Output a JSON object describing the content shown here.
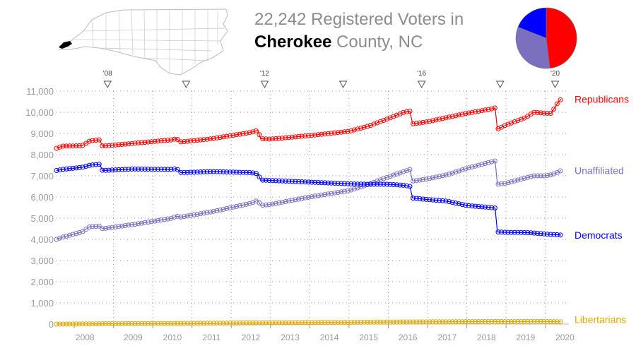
{
  "header": {
    "title_line1": "22,242 Registered Voters in",
    "county_name": "Cherokee",
    "title_line2_rest": " County, NC",
    "map_icon": "north-carolina-county-map-icon",
    "highlight_color": "#000000"
  },
  "pie": {
    "slices": [
      {
        "name": "Republicans",
        "value": 10600,
        "color": "#ff0000"
      },
      {
        "name": "Unaffiliated",
        "value": 7250,
        "color": "#7b70c0"
      },
      {
        "name": "Democrats",
        "value": 4200,
        "color": "#0000ff"
      }
    ]
  },
  "chart_data": {
    "type": "line",
    "ylim": [
      0,
      11000
    ],
    "xlim": [
      2007.55,
      2020.6
    ],
    "grid": true,
    "y_ticks": [
      "0",
      "1,000",
      "2,000",
      "3,000",
      "4,000",
      "5,000",
      "6,000",
      "7,000",
      "8,000",
      "9,000",
      "10,000",
      "11,000"
    ],
    "x_ticks": [
      "2008",
      "2009",
      "2010",
      "2011",
      "2012",
      "2013",
      "2014",
      "2015",
      "2016",
      "2017",
      "2018",
      "2019",
      "2020"
    ],
    "election_markers": [
      {
        "x": 2008.85,
        "label": "'08"
      },
      {
        "x": 2010.85,
        "label": ""
      },
      {
        "x": 2012.85,
        "label": "'12"
      },
      {
        "x": 2014.85,
        "label": ""
      },
      {
        "x": 2016.85,
        "label": "'16"
      },
      {
        "x": 2018.85,
        "label": ""
      },
      {
        "x": 2020.25,
        "label": "'20"
      }
    ],
    "series": [
      {
        "name": "Republicans",
        "color": "#ff0000",
        "points": [
          [
            2007.55,
            8300
          ],
          [
            2007.7,
            8400
          ],
          [
            2008.2,
            8420
          ],
          [
            2008.4,
            8650
          ],
          [
            2008.65,
            8700
          ],
          [
            2008.72,
            8400
          ],
          [
            2009.5,
            8530
          ],
          [
            2010.5,
            8700
          ],
          [
            2010.6,
            8760
          ],
          [
            2010.72,
            8600
          ],
          [
            2011.5,
            8750
          ],
          [
            2012.5,
            9050
          ],
          [
            2012.68,
            9150
          ],
          [
            2012.75,
            8750
          ],
          [
            2013.0,
            8730
          ],
          [
            2014.0,
            8900
          ],
          [
            2015.0,
            9100
          ],
          [
            2015.5,
            9350
          ],
          [
            2016.0,
            9700
          ],
          [
            2016.4,
            10000
          ],
          [
            2016.55,
            10050
          ],
          [
            2016.62,
            9450
          ],
          [
            2017.0,
            9550
          ],
          [
            2017.5,
            9750
          ],
          [
            2018.0,
            9950
          ],
          [
            2018.6,
            10150
          ],
          [
            2018.72,
            10200
          ],
          [
            2018.78,
            9200
          ],
          [
            2019.0,
            9400
          ],
          [
            2019.5,
            9750
          ],
          [
            2019.7,
            10000
          ],
          [
            2020.0,
            9950
          ],
          [
            2020.15,
            9950
          ],
          [
            2020.3,
            10400
          ],
          [
            2020.4,
            10620
          ]
        ]
      },
      {
        "name": "Unaffiliated",
        "color": "#7b70c0",
        "points": [
          [
            2007.55,
            4000
          ],
          [
            2007.7,
            4100
          ],
          [
            2008.2,
            4350
          ],
          [
            2008.4,
            4600
          ],
          [
            2008.65,
            4620
          ],
          [
            2008.72,
            4500
          ],
          [
            2009.5,
            4700
          ],
          [
            2010.5,
            5000
          ],
          [
            2010.6,
            5100
          ],
          [
            2010.72,
            5050
          ],
          [
            2011.5,
            5300
          ],
          [
            2012.5,
            5700
          ],
          [
            2012.68,
            5850
          ],
          [
            2012.75,
            5600
          ],
          [
            2013.0,
            5650
          ],
          [
            2014.0,
            6000
          ],
          [
            2015.0,
            6300
          ],
          [
            2015.5,
            6600
          ],
          [
            2016.0,
            6950
          ],
          [
            2016.4,
            7200
          ],
          [
            2016.55,
            7300
          ],
          [
            2016.62,
            6750
          ],
          [
            2017.0,
            6850
          ],
          [
            2017.5,
            7050
          ],
          [
            2018.0,
            7350
          ],
          [
            2018.6,
            7650
          ],
          [
            2018.72,
            7700
          ],
          [
            2018.78,
            6600
          ],
          [
            2019.0,
            6650
          ],
          [
            2019.5,
            6900
          ],
          [
            2019.7,
            7000
          ],
          [
            2020.0,
            7000
          ],
          [
            2020.15,
            7050
          ],
          [
            2020.3,
            7150
          ],
          [
            2020.4,
            7250
          ]
        ]
      },
      {
        "name": "Democrats",
        "color": "#0000ff",
        "points": [
          [
            2007.55,
            7250
          ],
          [
            2007.7,
            7300
          ],
          [
            2008.2,
            7400
          ],
          [
            2008.4,
            7500
          ],
          [
            2008.65,
            7550
          ],
          [
            2008.72,
            7250
          ],
          [
            2009.5,
            7320
          ],
          [
            2010.5,
            7300
          ],
          [
            2010.6,
            7350
          ],
          [
            2010.72,
            7150
          ],
          [
            2011.5,
            7200
          ],
          [
            2012.5,
            7150
          ],
          [
            2012.68,
            7100
          ],
          [
            2012.75,
            6800
          ],
          [
            2013.0,
            6780
          ],
          [
            2014.0,
            6700
          ],
          [
            2015.0,
            6620
          ],
          [
            2015.5,
            6600
          ],
          [
            2016.0,
            6600
          ],
          [
            2016.4,
            6550
          ],
          [
            2016.55,
            6500
          ],
          [
            2016.62,
            5950
          ],
          [
            2017.0,
            5880
          ],
          [
            2017.5,
            5800
          ],
          [
            2018.0,
            5600
          ],
          [
            2018.6,
            5500
          ],
          [
            2018.72,
            5480
          ],
          [
            2018.78,
            4350
          ],
          [
            2019.0,
            4330
          ],
          [
            2019.5,
            4320
          ],
          [
            2019.7,
            4300
          ],
          [
            2020.0,
            4250
          ],
          [
            2020.15,
            4230
          ],
          [
            2020.3,
            4220
          ],
          [
            2020.4,
            4200
          ]
        ]
      },
      {
        "name": "Libertarians",
        "color": "#e0a800",
        "points": [
          [
            2007.55,
            0
          ],
          [
            2007.7,
            0
          ],
          [
            2008.2,
            5
          ],
          [
            2008.65,
            15
          ],
          [
            2009.5,
            20
          ],
          [
            2010.5,
            30
          ],
          [
            2011.5,
            40
          ],
          [
            2012.5,
            55
          ],
          [
            2013.0,
            60
          ],
          [
            2014.0,
            70
          ],
          [
            2015.0,
            80
          ],
          [
            2016.0,
            95
          ],
          [
            2016.55,
            100
          ],
          [
            2017.0,
            105
          ],
          [
            2018.0,
            115
          ],
          [
            2018.72,
            120
          ],
          [
            2019.0,
            115
          ],
          [
            2019.7,
            125
          ],
          [
            2020.0,
            120
          ],
          [
            2020.4,
            110
          ]
        ]
      }
    ],
    "legend": [
      "Republicans",
      "Unaffiliated",
      "Democrats",
      "Libertarians"
    ],
    "legend_placement": "right of each line end"
  }
}
